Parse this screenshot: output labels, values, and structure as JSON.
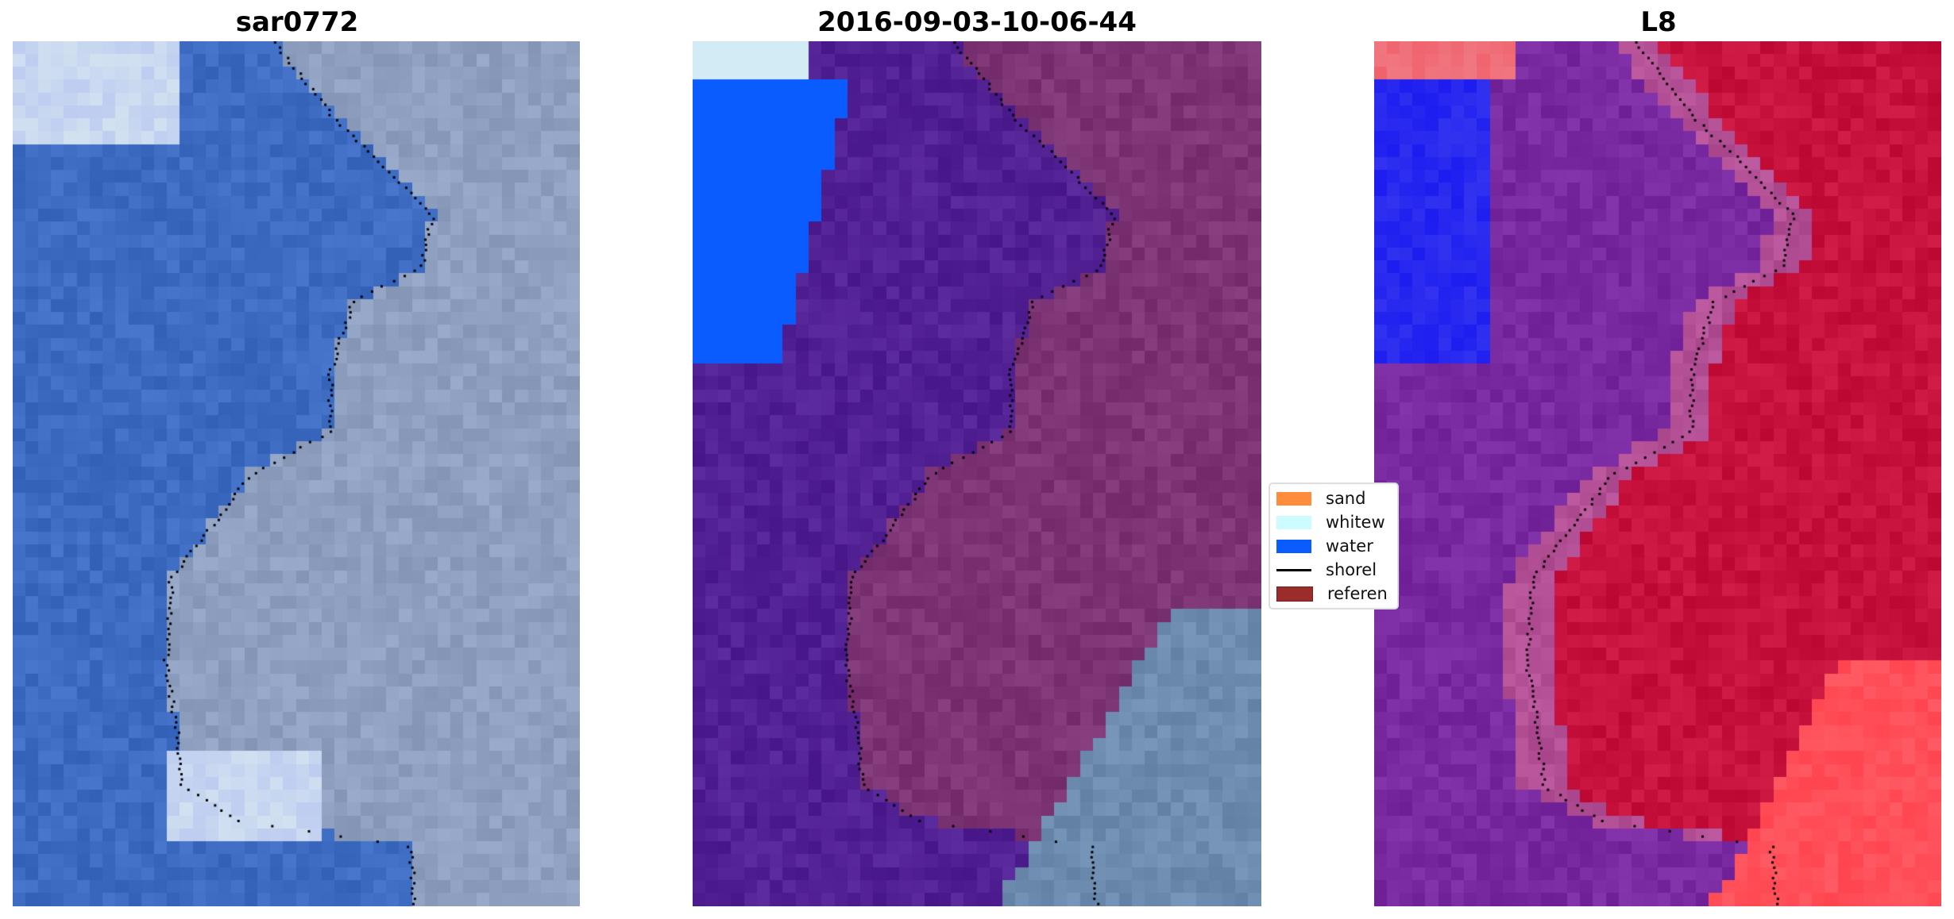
{
  "panels": [
    {
      "title": "sar0772",
      "land": "#8fa0c0",
      "sea": "#3d6cc2"
    },
    {
      "title": "2016-09-03-10-06-44",
      "land": "#7d3575",
      "sea": "#522194"
    },
    {
      "title": "L8",
      "land": "#c6123c",
      "sea": "#7a2aa0"
    }
  ],
  "legend": {
    "items": [
      {
        "label": "sand",
        "color": "#ff8c3a"
      },
      {
        "label": "whitew",
        "color": "#ccfcff"
      },
      {
        "label": "water",
        "color": "#0a5cff"
      },
      {
        "label": "shorel",
        "color": "#000000"
      },
      {
        "label": "referen",
        "color": "#9a2c2c"
      }
    ]
  }
}
